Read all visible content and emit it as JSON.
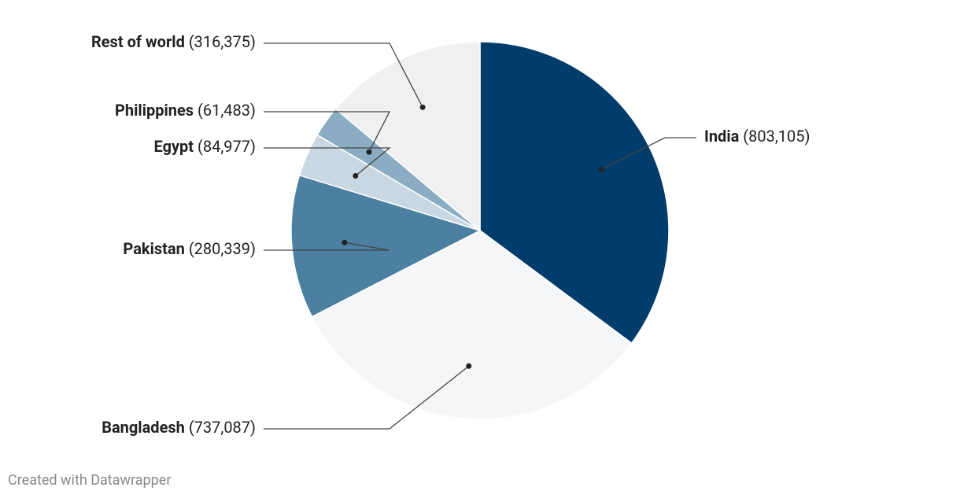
{
  "chart_data": {
    "type": "pie",
    "categories": [
      "India",
      "Bangladesh",
      "Pakistan",
      "Egypt",
      "Philippines",
      "Rest of world"
    ],
    "values": [
      803105,
      737087,
      280339,
      84977,
      61483,
      316375
    ],
    "value_labels": [
      "(803,105)",
      "(737,087)",
      "(280,339)",
      "(84,977)",
      "(61,483)",
      "(316,375)"
    ],
    "colors": [
      "#023c6b",
      "#f5f6f8",
      "#4b80a1",
      "#c8d7e1",
      "#8aadc3",
      "#f0f0f0"
    ],
    "footer": "Created with Datawrapper"
  }
}
